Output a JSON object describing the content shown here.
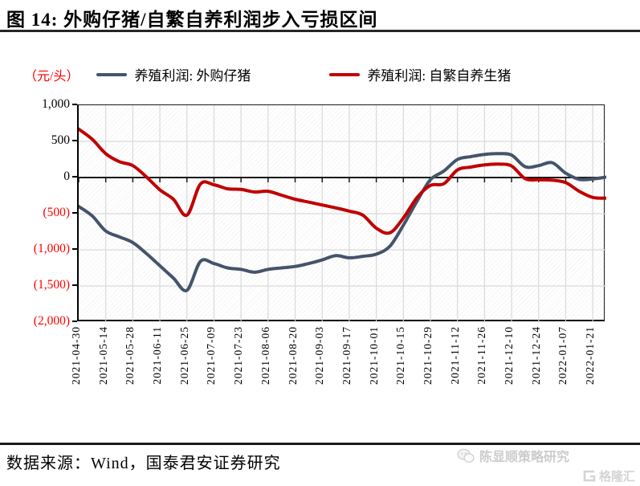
{
  "title": {
    "text": "图 14:  外购仔猪/自繁自养利润步入亏损区间"
  },
  "legend": {
    "unit_label": "（元/头）",
    "items": [
      {
        "label": "养殖利润: 外购仔猪",
        "color": "#44546A"
      },
      {
        "label": "养殖利润: 自繁自养生猪",
        "color": "#C00000"
      }
    ]
  },
  "footer": {
    "source": "数据来源：Wind，国泰君安证券研究"
  },
  "watermark": {
    "account": "陈显顺策略研究",
    "platform": "格隆汇"
  },
  "chart_data": {
    "type": "line",
    "title": "外购仔猪/自繁自养利润步入亏损区间",
    "xlabel": "",
    "ylabel": "元/头",
    "ylim": [
      -2000,
      1000
    ],
    "grid": true,
    "legend_position": "top",
    "negative_tick_color": "#ff0000",
    "y_ticks": [
      1000,
      500,
      0,
      -500,
      -1000,
      -1500,
      -2000
    ],
    "y_tick_labels": [
      "1,000",
      "500",
      "0",
      "(500)",
      "(1,000)",
      "(1,500)",
      "(2,000)"
    ],
    "x": [
      "2021-04-30",
      "2021-05-07",
      "2021-05-14",
      "2021-05-21",
      "2021-05-28",
      "2021-06-04",
      "2021-06-11",
      "2021-06-18",
      "2021-06-25",
      "2021-07-02",
      "2021-07-09",
      "2021-07-16",
      "2021-07-23",
      "2021-07-30",
      "2021-08-06",
      "2021-08-13",
      "2021-08-20",
      "2021-08-27",
      "2021-09-03",
      "2021-09-10",
      "2021-09-17",
      "2021-09-24",
      "2021-10-01",
      "2021-10-08",
      "2021-10-15",
      "2021-10-22",
      "2021-10-29",
      "2021-11-05",
      "2021-11-12",
      "2021-11-19",
      "2021-11-26",
      "2021-12-03",
      "2021-12-10",
      "2021-12-17",
      "2021-12-24",
      "2021-12-31",
      "2022-01-07",
      "2022-01-14",
      "2022-01-21",
      "2022-01-28"
    ],
    "x_tick_labels": [
      "2021-04-30",
      "2021-05-14",
      "2021-05-28",
      "2021-06-11",
      "2021-06-25",
      "2021-07-09",
      "2021-07-23",
      "2021-08-06",
      "2021-08-20",
      "2021-09-03",
      "2021-09-17",
      "2021-10-01",
      "2021-10-15",
      "2021-10-29",
      "2021-11-12",
      "2021-11-26",
      "2021-12-10",
      "2021-12-24",
      "2022-01-07",
      "2022-01-21"
    ],
    "series": [
      {
        "name": "养殖利润: 外购仔猪",
        "color": "#44546A",
        "values": [
          -400,
          -530,
          -740,
          -820,
          -900,
          -1050,
          -1220,
          -1390,
          -1560,
          -1160,
          -1190,
          -1250,
          -1270,
          -1310,
          -1270,
          -1250,
          -1230,
          -1190,
          -1140,
          -1080,
          -1110,
          -1090,
          -1060,
          -950,
          -660,
          -330,
          -30,
          90,
          250,
          290,
          320,
          330,
          310,
          150,
          165,
          205,
          60,
          -25,
          -20,
          5
        ]
      },
      {
        "name": "养殖利润: 自繁自养生猪",
        "color": "#C00000",
        "values": [
          670,
          530,
          330,
          220,
          165,
          10,
          -170,
          -300,
          -520,
          -90,
          -100,
          -155,
          -165,
          -200,
          -190,
          -245,
          -300,
          -340,
          -380,
          -420,
          -465,
          -520,
          -700,
          -765,
          -560,
          -280,
          -110,
          -85,
          105,
          145,
          175,
          185,
          160,
          -15,
          -30,
          -35,
          -70,
          -190,
          -275,
          -285
        ]
      }
    ]
  }
}
